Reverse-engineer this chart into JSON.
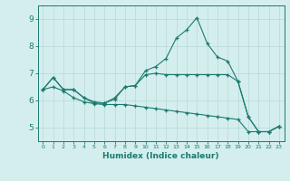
{
  "xlabel": "Humidex (Indice chaleur)",
  "xlim": [
    -0.5,
    23.5
  ],
  "ylim": [
    4.5,
    9.5
  ],
  "yticks": [
    5,
    6,
    7,
    8,
    9
  ],
  "xticks": [
    0,
    1,
    2,
    3,
    4,
    5,
    6,
    7,
    8,
    9,
    10,
    11,
    12,
    13,
    14,
    15,
    16,
    17,
    18,
    19,
    20,
    21,
    22,
    23
  ],
  "bg_color": "#d4eeee",
  "line_color": "#1a7a6e",
  "grid_color": "#b8d8d8",
  "line1_x": [
    0,
    1,
    2,
    3,
    4,
    5,
    6,
    7,
    8,
    9,
    10,
    11,
    12,
    13,
    14,
    15,
    16,
    17,
    18,
    19,
    20,
    21,
    22,
    23
  ],
  "line1_y": [
    6.4,
    6.85,
    6.4,
    6.4,
    6.1,
    5.95,
    5.9,
    6.05,
    6.5,
    6.55,
    7.1,
    7.25,
    7.55,
    8.3,
    8.6,
    9.05,
    8.1,
    7.6,
    7.45,
    6.7,
    5.4,
    4.85,
    4.85,
    5.05
  ],
  "line2_x": [
    0,
    1,
    2,
    3,
    4,
    5,
    6,
    7,
    8,
    9,
    10,
    11,
    12,
    13,
    14,
    15,
    16,
    17,
    18,
    19,
    20,
    21,
    22,
    23
  ],
  "line2_y": [
    6.4,
    6.85,
    6.4,
    6.4,
    6.1,
    5.9,
    5.9,
    6.1,
    6.5,
    6.55,
    6.95,
    7.0,
    6.95,
    6.95,
    6.95,
    6.95,
    6.95,
    6.95,
    6.95,
    6.7,
    5.4,
    4.85,
    4.85,
    5.05
  ],
  "line3_x": [
    0,
    1,
    2,
    3,
    4,
    5,
    6,
    7,
    8,
    9,
    10,
    11,
    12,
    13,
    14,
    15,
    16,
    17,
    18,
    19,
    20,
    21,
    22,
    23
  ],
  "line3_y": [
    6.4,
    6.5,
    6.35,
    6.1,
    5.95,
    5.88,
    5.85,
    5.85,
    5.85,
    5.8,
    5.75,
    5.7,
    5.65,
    5.6,
    5.55,
    5.5,
    5.45,
    5.4,
    5.35,
    5.3,
    4.85,
    4.85,
    4.85,
    5.05
  ]
}
